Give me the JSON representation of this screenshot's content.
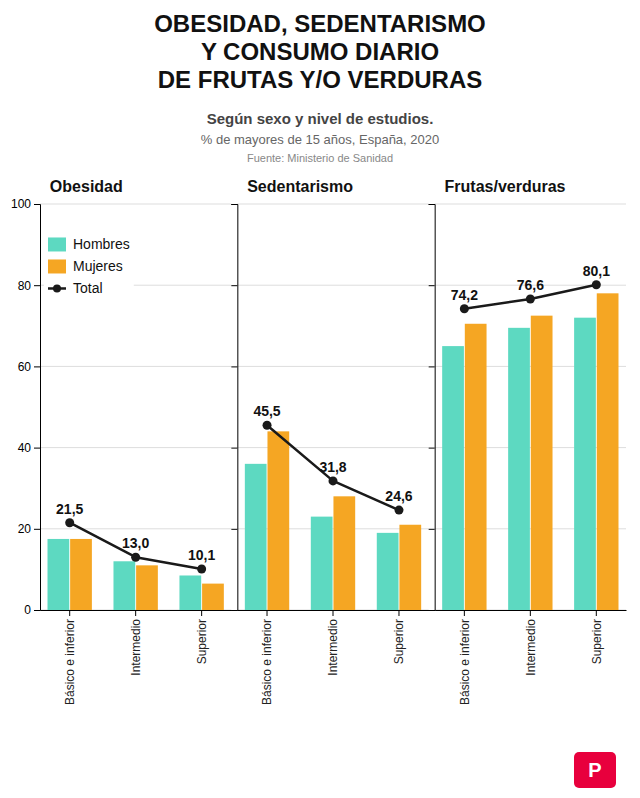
{
  "title": [
    "OBESIDAD, SEDENTARISMO",
    "Y CONSUMO DIARIO",
    "DE FRUTAS Y/O VERDURAS"
  ],
  "subtitle": [
    "Según sexo y nivel de estudios.",
    "% de mayores de 15 años, España, 2020"
  ],
  "annotations": [
    {
      "text": "Fuente: Ministerio de Sanidad"
    },
    {
      "text": "P",
      "color": "#E8003D"
    }
  ],
  "chart_data": [
    {
      "type": "bar",
      "title": "Obesidad",
      "categories": [
        "Básico e inferior",
        "Intermedio",
        "Superior"
      ],
      "series": [
        {
          "name": "Hombres",
          "type": "bar",
          "color": "#5DD9C1",
          "values": [
            17.5,
            12.0,
            8.5
          ]
        },
        {
          "name": "Mujeres",
          "type": "bar",
          "color": "#F5A623",
          "values": [
            17.5,
            11.0,
            6.5
          ]
        },
        {
          "name": "Total",
          "type": "line",
          "color": "#1a1a1a",
          "marker": "circle",
          "data_labels": true,
          "values": [
            21.5,
            13.0,
            10.1
          ],
          "value_labels": [
            "21,5",
            "13,0",
            "10,1"
          ]
        }
      ],
      "ylim": [
        0,
        100
      ],
      "yticks": [
        0,
        20,
        40,
        60,
        80,
        100
      ],
      "grid": true,
      "legend": "upper left"
    },
    {
      "type": "bar",
      "title": "Sedentarismo",
      "categories": [
        "Básico e inferior",
        "Intermedio",
        "Superior"
      ],
      "series": [
        {
          "name": "Hombres",
          "type": "bar",
          "color": "#5DD9C1",
          "values": [
            36.0,
            23.0,
            19.0
          ]
        },
        {
          "name": "Mujeres",
          "type": "bar",
          "color": "#F5A623",
          "values": [
            44.0,
            28.0,
            21.0
          ]
        },
        {
          "name": "Total",
          "type": "line",
          "color": "#1a1a1a",
          "marker": "circle",
          "data_labels": true,
          "values": [
            45.5,
            31.8,
            24.6
          ],
          "value_labels": [
            "45,5",
            "31,8",
            "24,6"
          ]
        }
      ],
      "ylim": [
        0,
        100
      ],
      "yticks": [
        0,
        20,
        40,
        60,
        80,
        100
      ],
      "grid": true,
      "tick_labels": "x"
    },
    {
      "type": "bar",
      "title": "Frutas/verduras",
      "categories": [
        "Básico e inferior",
        "Intermedio",
        "Superior"
      ],
      "series": [
        {
          "name": "Hombres",
          "type": "bar",
          "color": "#5DD9C1",
          "values": [
            65.0,
            69.5,
            72.0
          ]
        },
        {
          "name": "Mujeres",
          "type": "bar",
          "color": "#F5A623",
          "values": [
            70.5,
            72.5,
            78.0
          ]
        },
        {
          "name": "Total",
          "type": "line",
          "color": "#1a1a1a",
          "marker": "circle",
          "data_labels": true,
          "values": [
            74.2,
            76.6,
            80.1
          ],
          "value_labels": [
            "74,2",
            "76,6",
            "80,1"
          ]
        }
      ],
      "ylim": [
        0,
        100
      ],
      "yticks": [
        0,
        20,
        40,
        60,
        80,
        100
      ],
      "grid": true,
      "tick_labels": "x"
    }
  ]
}
